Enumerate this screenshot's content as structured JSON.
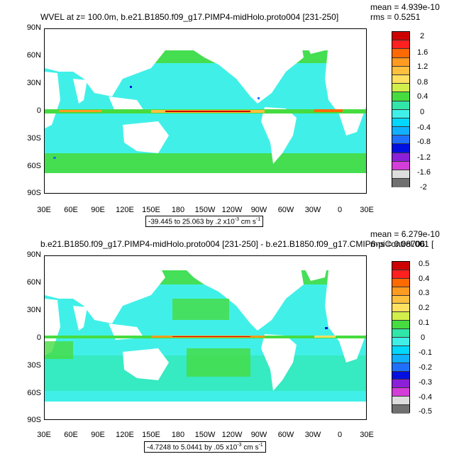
{
  "panels": [
    {
      "title": "WVEL at z= 100.0m, b.e21.B1850.f09_g17.PIMP4-midHolo.proto004 [231-250]",
      "mean": "mean = 4.939e-10",
      "rms": "rms = 0.5251",
      "range_text": "-39.445 to 25.063 by .2 x10",
      "range_exp": "-3",
      "range_unit": " cm s",
      "range_unit_exp": "-1",
      "lat_labels": [
        "90N",
        "60N",
        "30N",
        "0",
        "30S",
        "60S",
        "90S"
      ],
      "lon_labels": [
        "30E",
        "60E",
        "90E",
        "120E",
        "150E",
        "180",
        "150W",
        "120W",
        "90W",
        "60W",
        "30W",
        "0",
        "30E"
      ],
      "cbar_labels": [
        "2",
        "1.6",
        "1.2",
        "0.8",
        "0.4",
        "0",
        "-0.4",
        "-0.8",
        "-1.2",
        "-1.6",
        "-2"
      ]
    },
    {
      "title": "b.e21.B1850.f09_g17.PIMP4-midHolo.proto004 [231-250] - b.e21.B1850.f09_g17.CMIP6-piControl.001 [",
      "mean": "mean = 6.279e-10",
      "rms": "rms = 0.08706",
      "range_text": "-4.7248 to 5.0441 by .05 x10",
      "range_exp": "-3",
      "range_unit": " cm s",
      "range_unit_exp": "-1",
      "lat_labels": [
        "90N",
        "60N",
        "30N",
        "0",
        "30S",
        "60S",
        "90S"
      ],
      "lon_labels": [
        "30E",
        "60E",
        "90E",
        "120E",
        "150E",
        "180",
        "150W",
        "120W",
        "90W",
        "60W",
        "30W",
        "0",
        "30E"
      ],
      "cbar_labels": [
        "0.5",
        "0.4",
        "0.3",
        "0.2",
        "0.1",
        "0",
        "-0.1",
        "-0.2",
        "-0.3",
        "-0.4",
        "-0.5"
      ]
    }
  ],
  "colors": {
    "palette": [
      "#cc0000",
      "#ff2020",
      "#ff6a00",
      "#ff9b20",
      "#ffc040",
      "#ffe060",
      "#d2ee4a",
      "#46dc40",
      "#30e6a8",
      "#40f0e8",
      "#00d8ff",
      "#10b0ff",
      "#2070ff",
      "#0010e0",
      "#8c1fd8",
      "#d33ed8",
      "#dddddd",
      "#707070"
    ],
    "ocean_base": "#40f0e8",
    "ocean_band": "#46dc40",
    "land": "#ffffff"
  }
}
